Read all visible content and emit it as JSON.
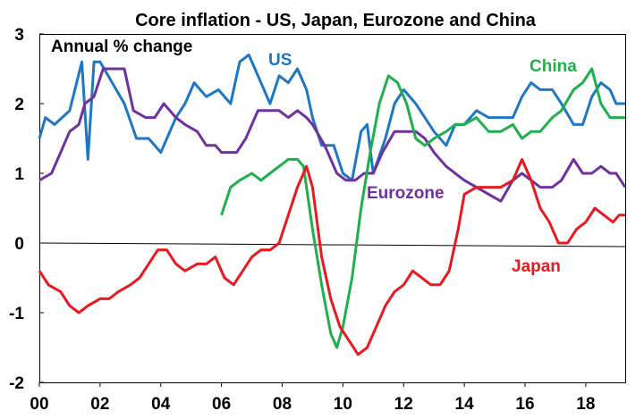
{
  "chart_data": {
    "type": "line",
    "title": "Core inflation - US, Japan, Eurozone and China",
    "unit_label": "Annual % change",
    "xlabel": "",
    "ylabel": "",
    "xlim": [
      2000,
      2019.3
    ],
    "ylim": [
      -2,
      3
    ],
    "x_ticks": [
      {
        "value": 2000,
        "label": "00"
      },
      {
        "value": 2002,
        "label": "02"
      },
      {
        "value": 2004,
        "label": "04"
      },
      {
        "value": 2006,
        "label": "06"
      },
      {
        "value": 2008,
        "label": "08"
      },
      {
        "value": 2010,
        "label": "10"
      },
      {
        "value": 2012,
        "label": "12"
      },
      {
        "value": 2014,
        "label": "14"
      },
      {
        "value": 2016,
        "label": "16"
      },
      {
        "value": 2018,
        "label": "18"
      }
    ],
    "y_ticks": [
      -2,
      -1,
      0,
      1,
      2,
      3
    ],
    "grid": false,
    "legend": "inline labels",
    "series": [
      {
        "name": "US",
        "color": "#1F77C4",
        "points": [
          [
            2000.0,
            1.5
          ],
          [
            2000.2,
            1.8
          ],
          [
            2000.5,
            1.7
          ],
          [
            2001.0,
            1.9
          ],
          [
            2001.4,
            2.6
          ],
          [
            2001.6,
            1.2
          ],
          [
            2001.8,
            2.6
          ],
          [
            2002.0,
            2.6
          ],
          [
            2002.4,
            2.3
          ],
          [
            2002.8,
            2.0
          ],
          [
            2003.2,
            1.5
          ],
          [
            2003.6,
            1.5
          ],
          [
            2004.0,
            1.3
          ],
          [
            2004.5,
            1.8
          ],
          [
            2004.8,
            2.0
          ],
          [
            2005.1,
            2.3
          ],
          [
            2005.5,
            2.1
          ],
          [
            2005.9,
            2.2
          ],
          [
            2006.3,
            2.0
          ],
          [
            2006.6,
            2.6
          ],
          [
            2006.9,
            2.7
          ],
          [
            2007.2,
            2.4
          ],
          [
            2007.6,
            2.0
          ],
          [
            2007.9,
            2.4
          ],
          [
            2008.2,
            2.3
          ],
          [
            2008.5,
            2.5
          ],
          [
            2008.8,
            2.2
          ],
          [
            2009.0,
            1.8
          ],
          [
            2009.3,
            1.4
          ],
          [
            2009.7,
            1.4
          ],
          [
            2010.0,
            1.0
          ],
          [
            2010.3,
            0.9
          ],
          [
            2010.6,
            1.6
          ],
          [
            2010.8,
            1.7
          ],
          [
            2011.0,
            1.0
          ],
          [
            2011.4,
            1.5
          ],
          [
            2011.7,
            2.0
          ],
          [
            2012.0,
            2.2
          ],
          [
            2012.4,
            2.0
          ],
          [
            2012.7,
            1.8
          ],
          [
            2013.0,
            1.6
          ],
          [
            2013.4,
            1.4
          ],
          [
            2013.7,
            1.7
          ],
          [
            2014.0,
            1.7
          ],
          [
            2014.4,
            1.9
          ],
          [
            2014.8,
            1.8
          ],
          [
            2015.2,
            1.8
          ],
          [
            2015.6,
            1.8
          ],
          [
            2015.9,
            2.1
          ],
          [
            2016.2,
            2.3
          ],
          [
            2016.5,
            2.2
          ],
          [
            2016.9,
            2.2
          ],
          [
            2017.2,
            2.0
          ],
          [
            2017.6,
            1.7
          ],
          [
            2017.9,
            1.7
          ],
          [
            2018.2,
            2.1
          ],
          [
            2018.5,
            2.3
          ],
          [
            2018.8,
            2.2
          ],
          [
            2019.0,
            2.0
          ],
          [
            2019.3,
            2.0
          ]
        ]
      },
      {
        "name": "Eurozone",
        "color": "#7030A0",
        "points": [
          [
            2000.0,
            0.9
          ],
          [
            2000.4,
            1.0
          ],
          [
            2000.7,
            1.3
          ],
          [
            2001.0,
            1.6
          ],
          [
            2001.3,
            1.7
          ],
          [
            2001.5,
            2.0
          ],
          [
            2001.8,
            2.1
          ],
          [
            2002.1,
            2.5
          ],
          [
            2002.5,
            2.5
          ],
          [
            2002.8,
            2.5
          ],
          [
            2003.1,
            1.9
          ],
          [
            2003.5,
            1.8
          ],
          [
            2003.8,
            1.8
          ],
          [
            2004.1,
            2.0
          ],
          [
            2004.5,
            1.8
          ],
          [
            2004.8,
            1.7
          ],
          [
            2005.2,
            1.6
          ],
          [
            2005.5,
            1.4
          ],
          [
            2005.8,
            1.4
          ],
          [
            2006.0,
            1.3
          ],
          [
            2006.5,
            1.3
          ],
          [
            2006.8,
            1.5
          ],
          [
            2007.2,
            1.9
          ],
          [
            2007.6,
            1.9
          ],
          [
            2007.9,
            1.9
          ],
          [
            2008.2,
            1.8
          ],
          [
            2008.5,
            1.9
          ],
          [
            2008.8,
            1.8
          ],
          [
            2009.0,
            1.7
          ],
          [
            2009.4,
            1.4
          ],
          [
            2009.8,
            1.0
          ],
          [
            2010.1,
            0.9
          ],
          [
            2010.4,
            0.9
          ],
          [
            2010.7,
            1.0
          ],
          [
            2011.0,
            1.0
          ],
          [
            2011.3,
            1.3
          ],
          [
            2011.7,
            1.6
          ],
          [
            2012.0,
            1.6
          ],
          [
            2012.4,
            1.6
          ],
          [
            2012.7,
            1.5
          ],
          [
            2013.0,
            1.3
          ],
          [
            2013.4,
            1.1
          ],
          [
            2013.7,
            1.0
          ],
          [
            2014.0,
            0.9
          ],
          [
            2014.4,
            0.8
          ],
          [
            2014.8,
            0.7
          ],
          [
            2015.2,
            0.6
          ],
          [
            2015.6,
            0.9
          ],
          [
            2015.9,
            1.0
          ],
          [
            2016.2,
            0.9
          ],
          [
            2016.5,
            0.8
          ],
          [
            2016.9,
            0.8
          ],
          [
            2017.2,
            0.9
          ],
          [
            2017.6,
            1.2
          ],
          [
            2017.9,
            1.0
          ],
          [
            2018.2,
            1.0
          ],
          [
            2018.5,
            1.1
          ],
          [
            2018.8,
            1.0
          ],
          [
            2019.0,
            1.0
          ],
          [
            2019.3,
            0.8
          ]
        ]
      },
      {
        "name": "China",
        "color": "#1FAF4C",
        "points": [
          [
            2006.0,
            0.4
          ],
          [
            2006.3,
            0.8
          ],
          [
            2006.6,
            0.9
          ],
          [
            2007.0,
            1.0
          ],
          [
            2007.3,
            0.9
          ],
          [
            2007.6,
            1.0
          ],
          [
            2007.9,
            1.1
          ],
          [
            2008.2,
            1.2
          ],
          [
            2008.5,
            1.2
          ],
          [
            2008.7,
            1.1
          ],
          [
            2009.0,
            0.2
          ],
          [
            2009.3,
            -0.6
          ],
          [
            2009.6,
            -1.3
          ],
          [
            2009.8,
            -1.5
          ],
          [
            2010.0,
            -1.2
          ],
          [
            2010.3,
            -0.5
          ],
          [
            2010.6,
            0.5
          ],
          [
            2010.9,
            1.3
          ],
          [
            2011.2,
            2.0
          ],
          [
            2011.5,
            2.4
          ],
          [
            2011.8,
            2.3
          ],
          [
            2012.1,
            2.0
          ],
          [
            2012.4,
            1.5
          ],
          [
            2012.7,
            1.4
          ],
          [
            2013.0,
            1.5
          ],
          [
            2013.4,
            1.6
          ],
          [
            2013.7,
            1.7
          ],
          [
            2014.0,
            1.7
          ],
          [
            2014.4,
            1.8
          ],
          [
            2014.8,
            1.6
          ],
          [
            2015.2,
            1.6
          ],
          [
            2015.6,
            1.7
          ],
          [
            2015.9,
            1.5
          ],
          [
            2016.2,
            1.6
          ],
          [
            2016.5,
            1.6
          ],
          [
            2016.9,
            1.8
          ],
          [
            2017.2,
            1.9
          ],
          [
            2017.6,
            2.2
          ],
          [
            2017.9,
            2.3
          ],
          [
            2018.2,
            2.5
          ],
          [
            2018.5,
            2.0
          ],
          [
            2018.8,
            1.8
          ],
          [
            2019.0,
            1.8
          ],
          [
            2019.3,
            1.8
          ]
        ]
      },
      {
        "name": "Japan",
        "color": "#E8191F",
        "points": [
          [
            2000.0,
            -0.4
          ],
          [
            2000.3,
            -0.6
          ],
          [
            2000.7,
            -0.7
          ],
          [
            2001.0,
            -0.9
          ],
          [
            2001.3,
            -1.0
          ],
          [
            2001.6,
            -0.9
          ],
          [
            2002.0,
            -0.8
          ],
          [
            2002.3,
            -0.8
          ],
          [
            2002.6,
            -0.7
          ],
          [
            2003.0,
            -0.6
          ],
          [
            2003.3,
            -0.5
          ],
          [
            2003.6,
            -0.3
          ],
          [
            2003.9,
            -0.1
          ],
          [
            2004.2,
            -0.1
          ],
          [
            2004.5,
            -0.3
          ],
          [
            2004.8,
            -0.4
          ],
          [
            2005.2,
            -0.3
          ],
          [
            2005.5,
            -0.3
          ],
          [
            2005.8,
            -0.2
          ],
          [
            2006.1,
            -0.5
          ],
          [
            2006.4,
            -0.6
          ],
          [
            2006.7,
            -0.4
          ],
          [
            2007.0,
            -0.2
          ],
          [
            2007.3,
            -0.1
          ],
          [
            2007.6,
            -0.1
          ],
          [
            2007.9,
            0.0
          ],
          [
            2008.2,
            0.4
          ],
          [
            2008.5,
            0.8
          ],
          [
            2008.8,
            1.1
          ],
          [
            2009.0,
            0.8
          ],
          [
            2009.3,
            -0.2
          ],
          [
            2009.6,
            -0.8
          ],
          [
            2009.9,
            -1.2
          ],
          [
            2010.2,
            -1.4
          ],
          [
            2010.5,
            -1.6
          ],
          [
            2010.8,
            -1.5
          ],
          [
            2011.1,
            -1.2
          ],
          [
            2011.4,
            -0.9
          ],
          [
            2011.7,
            -0.7
          ],
          [
            2012.0,
            -0.6
          ],
          [
            2012.3,
            -0.4
          ],
          [
            2012.6,
            -0.5
          ],
          [
            2012.9,
            -0.6
          ],
          [
            2013.2,
            -0.6
          ],
          [
            2013.5,
            -0.4
          ],
          [
            2013.8,
            0.2
          ],
          [
            2014.0,
            0.7
          ],
          [
            2014.4,
            0.8
          ],
          [
            2014.8,
            0.8
          ],
          [
            2015.2,
            0.8
          ],
          [
            2015.6,
            0.9
          ],
          [
            2015.9,
            1.2
          ],
          [
            2016.2,
            0.9
          ],
          [
            2016.5,
            0.5
          ],
          [
            2016.8,
            0.3
          ],
          [
            2017.1,
            0.0
          ],
          [
            2017.4,
            0.0
          ],
          [
            2017.7,
            0.2
          ],
          [
            2018.0,
            0.3
          ],
          [
            2018.3,
            0.5
          ],
          [
            2018.6,
            0.4
          ],
          [
            2018.9,
            0.3
          ],
          [
            2019.1,
            0.4
          ],
          [
            2019.3,
            0.4
          ]
        ]
      }
    ]
  }
}
